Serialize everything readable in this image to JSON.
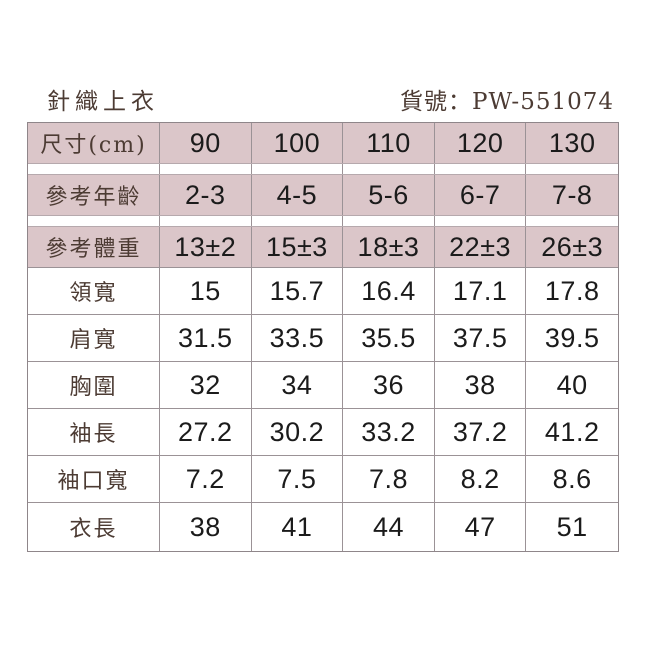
{
  "header": {
    "title": "針織上衣",
    "product_label": "貨號：",
    "product_code": "PW-551074"
  },
  "table": {
    "rows": [
      {
        "label": "尺寸(cm)",
        "values": [
          "90",
          "100",
          "110",
          "120",
          "130"
        ]
      },
      {
        "label": "參考年齡",
        "values": [
          "2-3",
          "4-5",
          "5-6",
          "6-7",
          "7-8"
        ]
      },
      {
        "label": "參考體重",
        "values": [
          "13±2",
          "15±3",
          "18±3",
          "22±3",
          "26±3"
        ]
      },
      {
        "label": "領寬",
        "values": [
          "15",
          "15.7",
          "16.4",
          "17.1",
          "17.8"
        ]
      },
      {
        "label": "肩寬",
        "values": [
          "31.5",
          "33.5",
          "35.5",
          "37.5",
          "39.5"
        ]
      },
      {
        "label": "胸圍",
        "values": [
          "32",
          "34",
          "36",
          "38",
          "40"
        ]
      },
      {
        "label": "袖長",
        "values": [
          "27.2",
          "30.2",
          "33.2",
          "37.2",
          "41.2"
        ]
      },
      {
        "label": "袖口寬",
        "values": [
          "7.2",
          "7.5",
          "7.8",
          "8.2",
          "8.6"
        ]
      },
      {
        "label": "衣長",
        "values": [
          "38",
          "41",
          "44",
          "47",
          "51"
        ]
      }
    ]
  },
  "colors": {
    "pink-bg": "#dbc6c9",
    "label-text": "#4c3b33",
    "number-text": "#1b1b1b",
    "outer-line": "#8f868a",
    "inner-line": "#9b9296",
    "gap-line": "#b6a9ad"
  }
}
